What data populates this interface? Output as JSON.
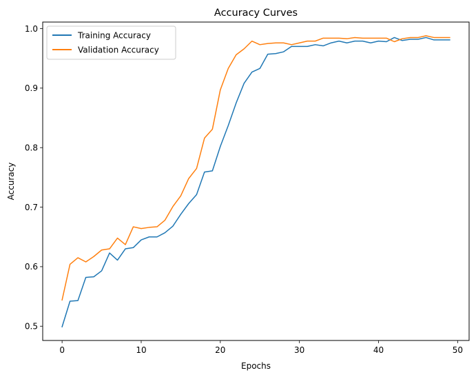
{
  "chart_data": {
    "type": "line",
    "title": "Accuracy Curves",
    "xlabel": "Epochs",
    "ylabel": "Accuracy",
    "xlim": [
      -2.45,
      51.45
    ],
    "ylim": [
      0.476,
      1.011
    ],
    "xticks": [
      0,
      10,
      20,
      30,
      40,
      50
    ],
    "yticks": [
      0.5,
      0.6,
      0.7,
      0.8,
      0.9,
      1.0
    ],
    "xtick_labels": [
      "0",
      "10",
      "20",
      "30",
      "40",
      "50"
    ],
    "ytick_labels": [
      "0.5",
      "0.6",
      "0.7",
      "0.8",
      "0.9",
      "1.0"
    ],
    "grid": false,
    "legend_position": "top-left",
    "x": [
      0,
      1,
      2,
      3,
      4,
      5,
      6,
      7,
      8,
      9,
      10,
      11,
      12,
      13,
      14,
      15,
      16,
      17,
      18,
      19,
      20,
      21,
      22,
      23,
      24,
      25,
      26,
      27,
      28,
      29,
      30,
      31,
      32,
      33,
      34,
      35,
      36,
      37,
      38,
      39,
      40,
      41,
      42,
      43,
      44,
      45,
      46,
      47,
      48,
      49
    ],
    "series": [
      {
        "name": "Training Accuracy",
        "color": "#1f77b4",
        "values": [
          0.499,
          0.542,
          0.543,
          0.582,
          0.583,
          0.593,
          0.623,
          0.611,
          0.63,
          0.632,
          0.645,
          0.65,
          0.65,
          0.657,
          0.668,
          0.688,
          0.706,
          0.721,
          0.759,
          0.761,
          0.802,
          0.837,
          0.875,
          0.908,
          0.927,
          0.933,
          0.957,
          0.958,
          0.961,
          0.97,
          0.97,
          0.97,
          0.973,
          0.971,
          0.976,
          0.979,
          0.976,
          0.979,
          0.979,
          0.976,
          0.979,
          0.978,
          0.985,
          0.98,
          0.982,
          0.982,
          0.985,
          0.981,
          0.981,
          0.981
        ]
      },
      {
        "name": "Validation Accuracy",
        "color": "#ff7f0e",
        "values": [
          0.544,
          0.604,
          0.615,
          0.608,
          0.617,
          0.628,
          0.63,
          0.648,
          0.637,
          0.667,
          0.664,
          0.666,
          0.667,
          0.678,
          0.701,
          0.719,
          0.748,
          0.765,
          0.816,
          0.831,
          0.897,
          0.933,
          0.956,
          0.966,
          0.979,
          0.973,
          0.975,
          0.976,
          0.976,
          0.973,
          0.976,
          0.979,
          0.979,
          0.984,
          0.984,
          0.984,
          0.983,
          0.985,
          0.984,
          0.984,
          0.984,
          0.984,
          0.978,
          0.983,
          0.985,
          0.985,
          0.988,
          0.985,
          0.985,
          0.985
        ]
      }
    ]
  }
}
